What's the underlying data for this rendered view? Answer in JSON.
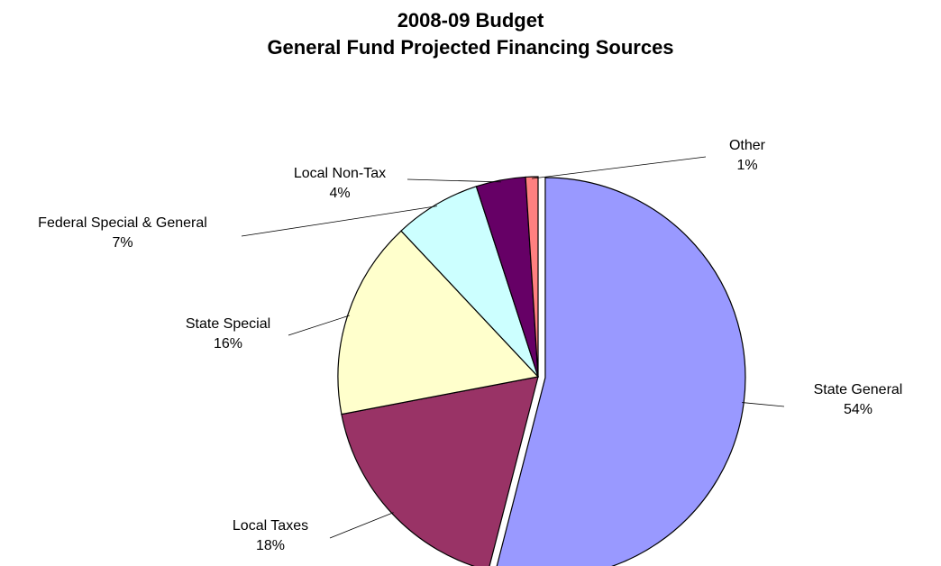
{
  "chart_data": {
    "type": "pie",
    "title": [
      "2008-09 Budget",
      "General Fund Projected Financing Sources"
    ],
    "slices": [
      {
        "label": "State General",
        "value": 54,
        "value_label": "54%",
        "color": "#9999ff"
      },
      {
        "label": "Local Taxes",
        "value": 18,
        "value_label": "18%",
        "color": "#993366"
      },
      {
        "label": "State Special",
        "value": 16,
        "value_label": "16%",
        "color": "#ffffcc"
      },
      {
        "label": "Federal Special & General",
        "value": 7,
        "value_label": "7%",
        "color": "#ccffff"
      },
      {
        "label": "Local Non-Tax",
        "value": 4,
        "value_label": "4%",
        "color": "#660066"
      },
      {
        "label": "Other",
        "value": 1,
        "value_label": "1%",
        "color": "#ff8080"
      }
    ],
    "legend": false
  }
}
